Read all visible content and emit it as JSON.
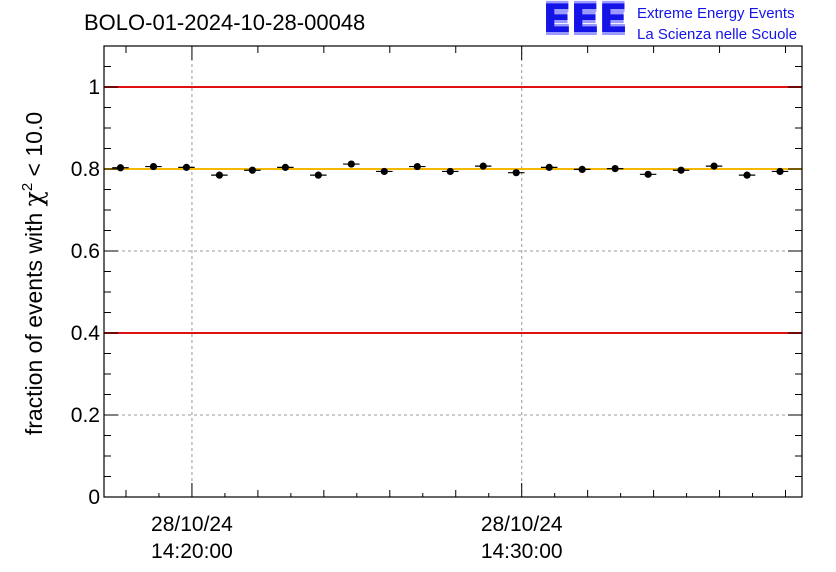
{
  "title": "BOLO-01-2024-10-28-00048",
  "logo": {
    "mark": "EEE",
    "line1": "Extreme Energy Events",
    "line2": "La Scienza nelle Scuole"
  },
  "colors": {
    "threshold": "#e01010",
    "mean": "#f5b800",
    "points": "#000000",
    "grid": "#9a9a9a",
    "logo": "#1414e6"
  },
  "chart_data": {
    "type": "scatter",
    "title": "BOLO-01-2024-10-28-00048",
    "ylabel": "fraction of events with χ² < 10.0",
    "ylabel_parts": {
      "pre": "fraction of events with ",
      "symbol": "χ",
      "sup": "2",
      "post": " < 10.0"
    },
    "xlabel": "",
    "ylim": [
      0,
      1.1
    ],
    "xlim": [
      "2024-10-28 14:17:20",
      "2024-10-28 14:38:30"
    ],
    "yticks": [
      {
        "value": 0,
        "label": "0"
      },
      {
        "value": 0.2,
        "label": "0.2"
      },
      {
        "value": 0.4,
        "label": "0.4"
      },
      {
        "value": 0.6,
        "label": "0.6"
      },
      {
        "value": 0.8,
        "label": "0.8"
      },
      {
        "value": 1.0,
        "label": "1"
      }
    ],
    "xticks": [
      {
        "value": "2024-10-28 14:20:00",
        "date": "28/10/24",
        "time": "14:20:00"
      },
      {
        "value": "2024-10-28 14:30:00",
        "date": "28/10/24",
        "time": "14:30:00"
      }
    ],
    "grid": true,
    "threshold_lines": [
      1.0,
      0.4
    ],
    "mean_line": 0.8,
    "points": [
      {
        "x": "2024-10-28 14:17:50",
        "y": 0.803
      },
      {
        "x": "2024-10-28 14:18:50",
        "y": 0.806
      },
      {
        "x": "2024-10-28 14:19:50",
        "y": 0.804
      },
      {
        "x": "2024-10-28 14:20:50",
        "y": 0.785
      },
      {
        "x": "2024-10-28 14:21:50",
        "y": 0.797
      },
      {
        "x": "2024-10-28 14:22:50",
        "y": 0.804
      },
      {
        "x": "2024-10-28 14:23:50",
        "y": 0.785
      },
      {
        "x": "2024-10-28 14:24:50",
        "y": 0.812
      },
      {
        "x": "2024-10-28 14:25:50",
        "y": 0.794
      },
      {
        "x": "2024-10-28 14:26:50",
        "y": 0.806
      },
      {
        "x": "2024-10-28 14:27:50",
        "y": 0.794
      },
      {
        "x": "2024-10-28 14:28:50",
        "y": 0.807
      },
      {
        "x": "2024-10-28 14:29:50",
        "y": 0.791
      },
      {
        "x": "2024-10-28 14:30:50",
        "y": 0.804
      },
      {
        "x": "2024-10-28 14:31:50",
        "y": 0.799
      },
      {
        "x": "2024-10-28 14:32:50",
        "y": 0.801
      },
      {
        "x": "2024-10-28 14:33:50",
        "y": 0.787
      },
      {
        "x": "2024-10-28 14:34:50",
        "y": 0.797
      },
      {
        "x": "2024-10-28 14:35:50",
        "y": 0.807
      },
      {
        "x": "2024-10-28 14:36:50",
        "y": 0.785
      },
      {
        "x": "2024-10-28 14:37:50",
        "y": 0.794
      }
    ]
  }
}
